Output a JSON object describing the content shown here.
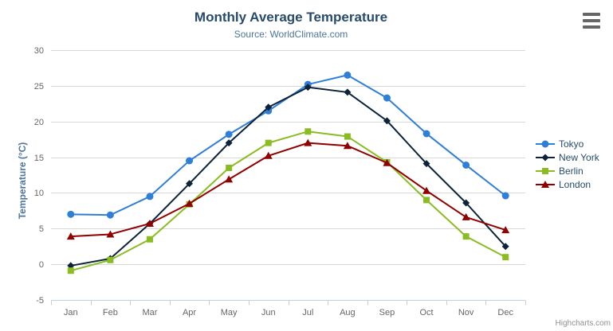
{
  "chart_data": {
    "type": "line",
    "title": "Monthly Average Temperature",
    "subtitle": "Source: WorldClimate.com",
    "categories": [
      "Jan",
      "Feb",
      "Mar",
      "Apr",
      "May",
      "Jun",
      "Jul",
      "Aug",
      "Sep",
      "Oct",
      "Nov",
      "Dec"
    ],
    "xlabel": "",
    "ylabel": "Temperature (°C)",
    "ylim": [
      -5,
      30
    ],
    "ytick_step": 5,
    "grid": true,
    "legend_position": "right",
    "series": [
      {
        "name": "Tokyo",
        "color": "#2f7ed8",
        "marker": "circle",
        "values": [
          7.0,
          6.9,
          9.5,
          14.5,
          18.2,
          21.5,
          25.2,
          26.5,
          23.3,
          18.3,
          13.9,
          9.6
        ]
      },
      {
        "name": "New York",
        "color": "#0d233a",
        "marker": "diamond",
        "values": [
          -0.2,
          0.8,
          5.7,
          11.3,
          17.0,
          22.0,
          24.8,
          24.1,
          20.1,
          14.1,
          8.6,
          2.5
        ]
      },
      {
        "name": "Berlin",
        "color": "#8bbc21",
        "marker": "square",
        "values": [
          -0.9,
          0.6,
          3.5,
          8.4,
          13.5,
          17.0,
          18.6,
          17.9,
          14.3,
          9.0,
          3.9,
          1.0
        ]
      },
      {
        "name": "London",
        "color": "#910000",
        "marker": "triangle",
        "values": [
          3.9,
          4.2,
          5.7,
          8.5,
          11.9,
          15.2,
          17.0,
          16.6,
          14.2,
          10.3,
          6.6,
          4.8
        ]
      }
    ]
  },
  "menu_icon": "hamburger-icon",
  "credit": "Highcharts.com",
  "colors": {
    "title": "#274b6d",
    "subtitle": "#4d759e",
    "axis_label": "#666666",
    "grid_line": "#d8d8d8",
    "axis_line": "#c0d0e0",
    "legend_text": "#274b6d",
    "credit": "#909090"
  }
}
